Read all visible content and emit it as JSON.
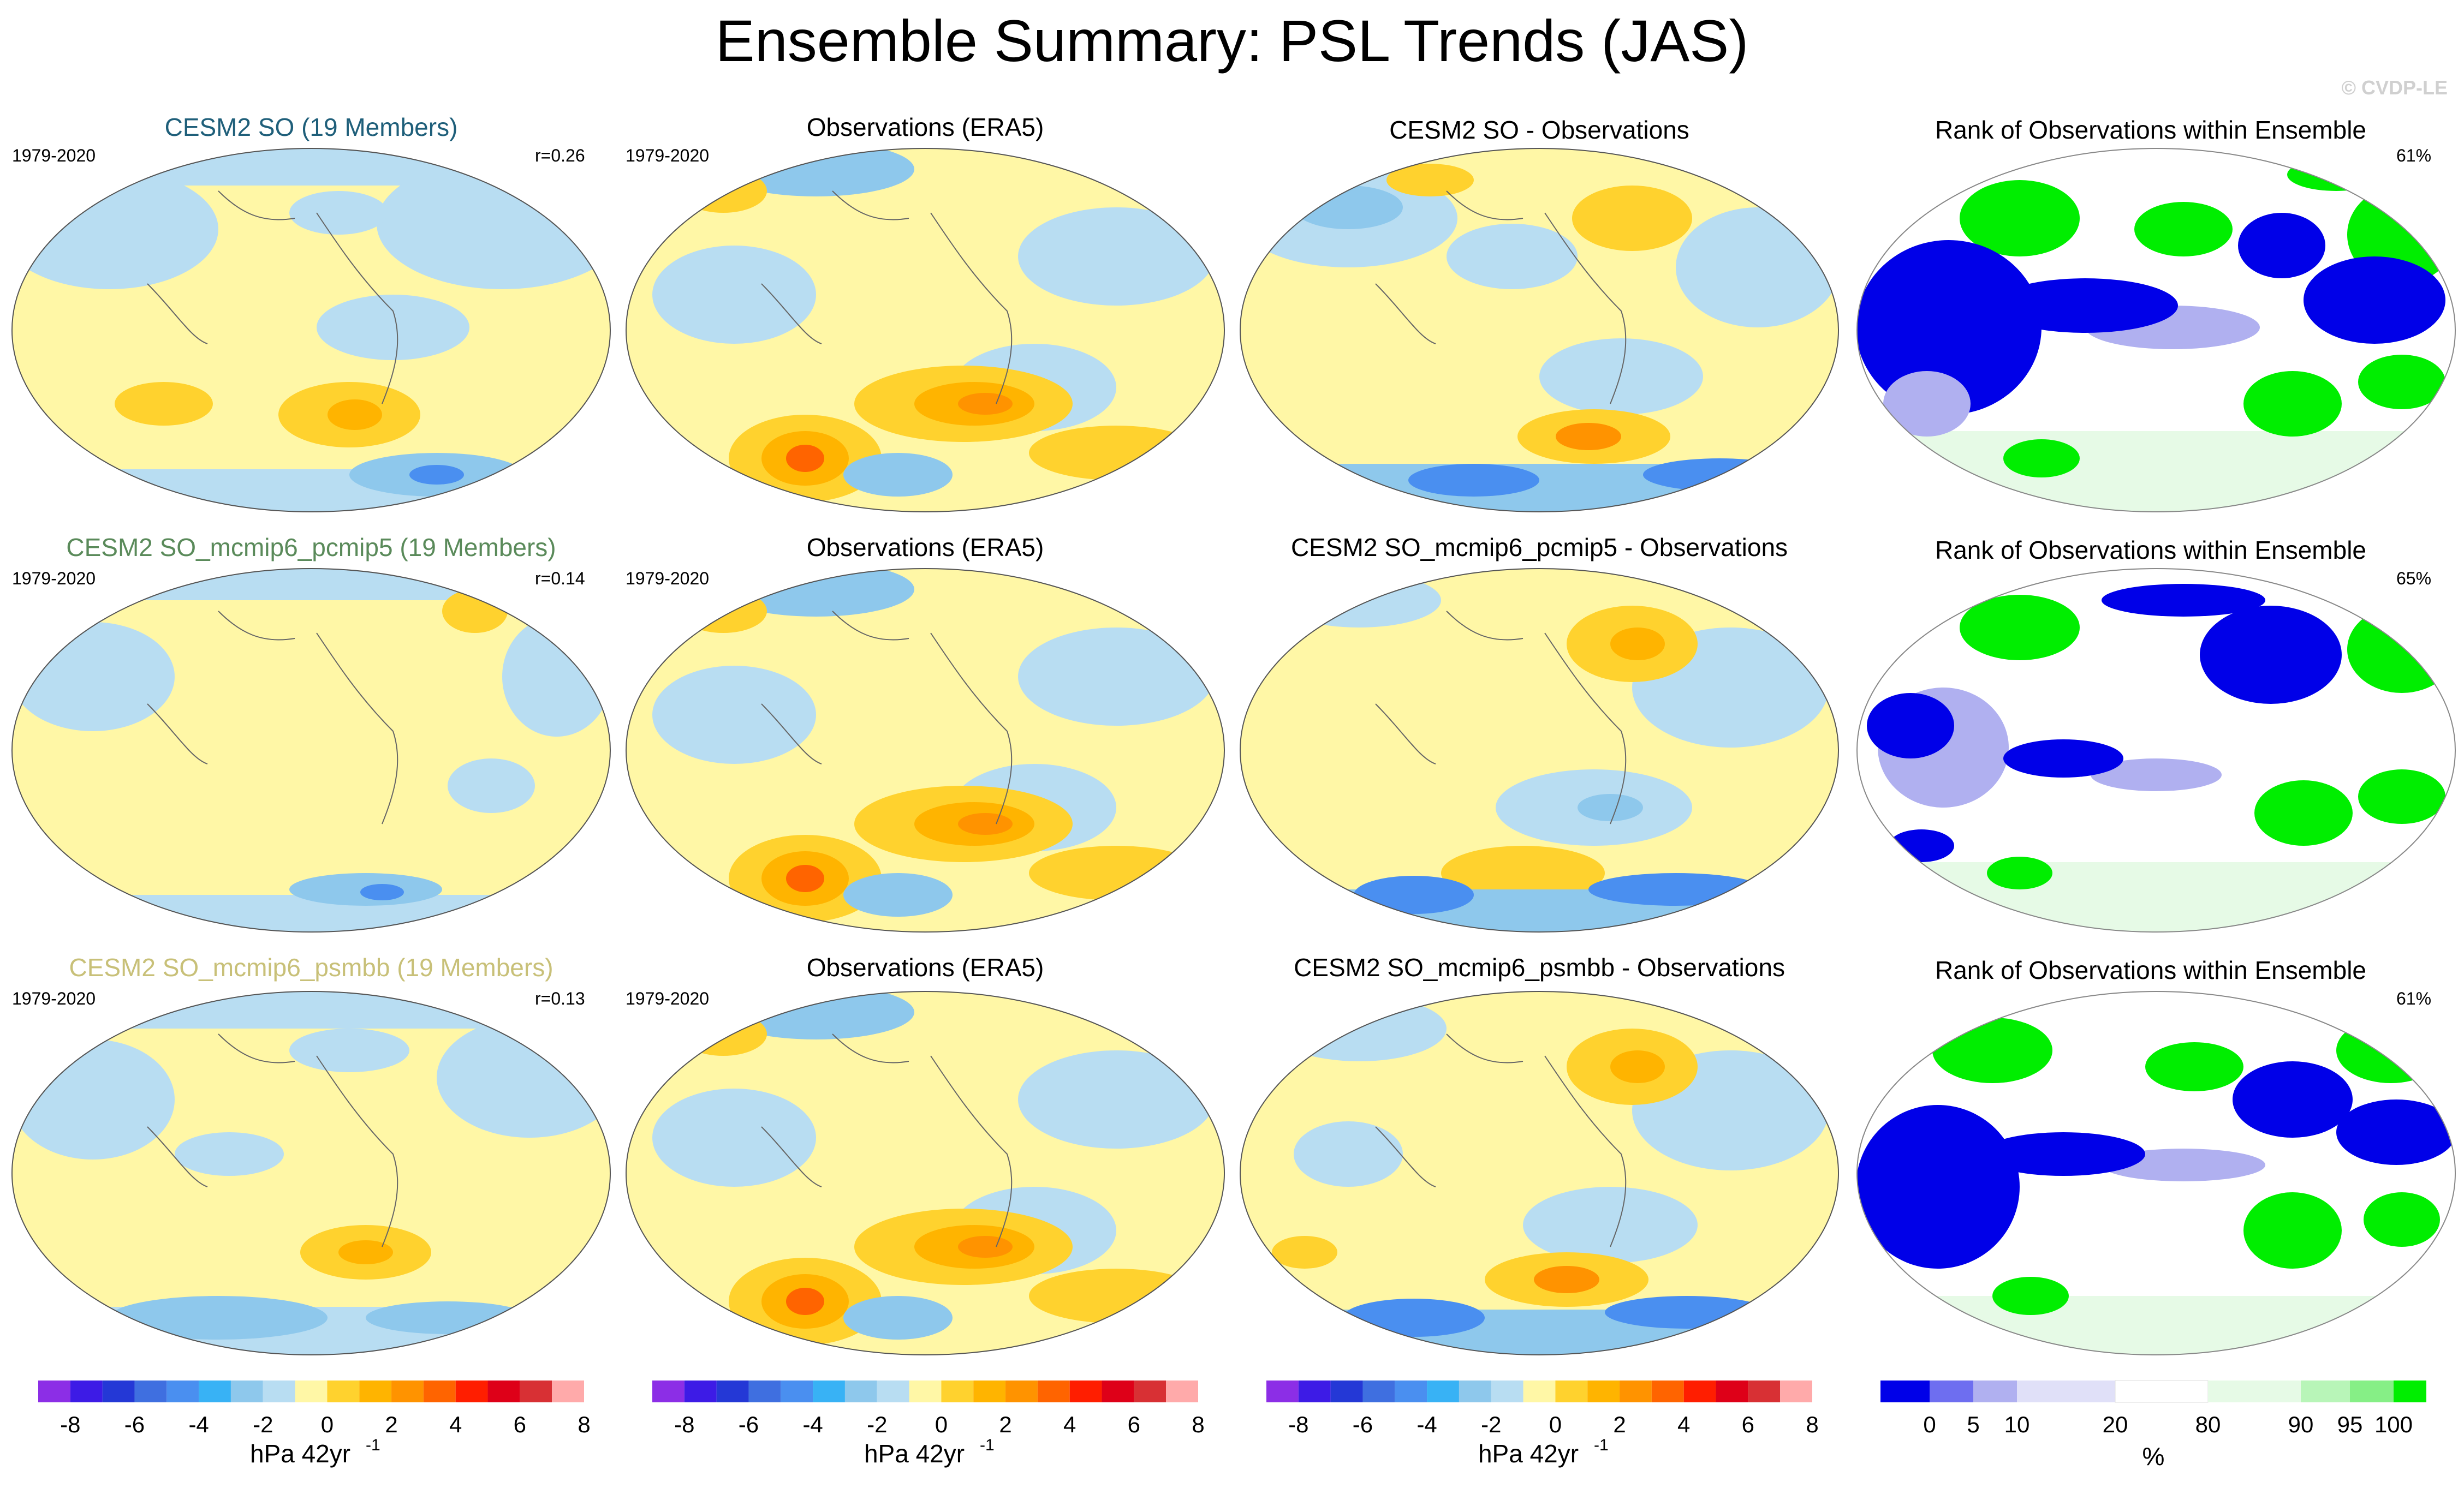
{
  "title": "Ensemble Summary: PSL Trends (JAS)",
  "credit": "© CVDP-LE",
  "colors": {
    "trend_scale": [
      "#8c2ee6",
      "#3d1be6",
      "#2438d6",
      "#3f6fe0",
      "#4a8ff0",
      "#38b2f5",
      "#8ec8ec",
      "#b8ddf2",
      "#fff7a6",
      "#ffd22e",
      "#ffb400",
      "#ff9300",
      "#ff6400",
      "#ff1e00",
      "#de0018",
      "#d83034",
      "#ffaaaa"
    ],
    "rank_scale": [
      "#0000e8",
      "#6e6ef0",
      "#b0b0f0",
      "#e0e0f8",
      "#ffffff",
      "#e6fae6",
      "#b8f5b8",
      "#86ef86",
      "#00ee00"
    ]
  },
  "rows": [
    {
      "model": {
        "title": "CESM2 SO (19 Members)",
        "title_color": "#1f5f7a",
        "period": "1979-2020",
        "r": "r=0.26"
      },
      "obs": {
        "title": "Observations (ERA5)",
        "period": "1979-2020"
      },
      "diff": {
        "title": "CESM2 SO - Observations"
      },
      "rank": {
        "title": "Rank of Observations within Ensemble",
        "percent": "61%"
      }
    },
    {
      "model": {
        "title": "CESM2 SO_mcmip6_pcmip5 (19 Members)",
        "title_color": "#5a8a5a",
        "period": "1979-2020",
        "r": "r=0.14"
      },
      "obs": {
        "title": "Observations (ERA5)",
        "period": "1979-2020"
      },
      "diff": {
        "title": "CESM2 SO_mcmip6_pcmip5 - Observations"
      },
      "rank": {
        "title": "Rank of Observations within Ensemble",
        "percent": "65%"
      }
    },
    {
      "model": {
        "title": "CESM2 SO_mcmip6_psmbb (19 Members)",
        "title_color": "#c8c078",
        "period": "1979-2020",
        "r": "r=0.13"
      },
      "obs": {
        "title": "Observations (ERA5)",
        "period": "1979-2020"
      },
      "diff": {
        "title": "CESM2 SO_mcmip6_psmbb - Observations"
      },
      "rank": {
        "title": "Rank of Observations within Ensemble",
        "percent": "61%"
      }
    }
  ],
  "colorbars": {
    "trend": {
      "ticks": [
        "-8",
        "-6",
        "-4",
        "-2",
        "0",
        "2",
        "4",
        "6",
        "8"
      ],
      "label": "hPa 42yr",
      "label_exp": "-1"
    },
    "rank": {
      "ticks": [
        "0",
        "5",
        "10",
        "20",
        "80",
        "90",
        "95",
        "100"
      ],
      "label": "%"
    }
  }
}
